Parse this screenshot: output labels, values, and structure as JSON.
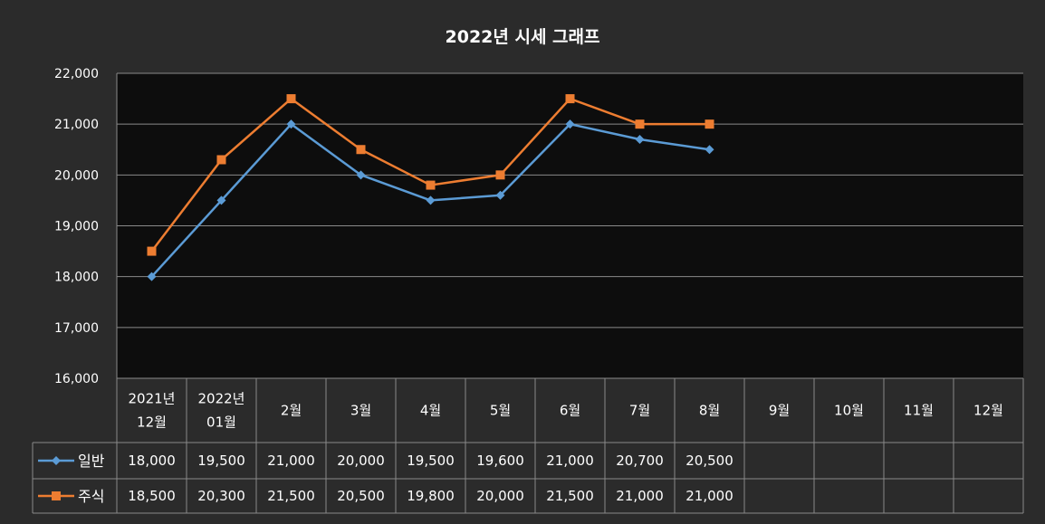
{
  "chart_data": {
    "type": "line",
    "title": "2022년 시세 그래프",
    "categories": [
      "2021년\n12월",
      "2022년\n01월",
      "2월",
      "3월",
      "4월",
      "5월",
      "6월",
      "7월",
      "8월",
      "9월",
      "10월",
      "11월",
      "12월"
    ],
    "ylim": [
      16000,
      22000
    ],
    "yticks": [
      "16,000",
      "17,000",
      "18,000",
      "19,000",
      "20,000",
      "21,000",
      "22,000"
    ],
    "grid": true,
    "legend": "data-table",
    "series": [
      {
        "name": "일반",
        "color": "#5b9bd5",
        "marker": "diamond",
        "values": [
          18000,
          19500,
          21000,
          20000,
          19500,
          19600,
          21000,
          20700,
          20500,
          null,
          null,
          null,
          null
        ],
        "labels": [
          "18,000",
          "19,500",
          "21,000",
          "20,000",
          "19,500",
          "19,600",
          "21,000",
          "20,700",
          "20,500",
          "",
          "",
          "",
          ""
        ]
      },
      {
        "name": "주식",
        "color": "#ed7d31",
        "marker": "square",
        "values": [
          18500,
          20300,
          21500,
          20500,
          19800,
          20000,
          21500,
          21000,
          21000,
          null,
          null,
          null,
          null
        ],
        "labels": [
          "18,500",
          "20,300",
          "21,500",
          "20,500",
          "19,800",
          "20,000",
          "21,500",
          "21,000",
          "21,000",
          "",
          "",
          "",
          ""
        ]
      }
    ]
  }
}
